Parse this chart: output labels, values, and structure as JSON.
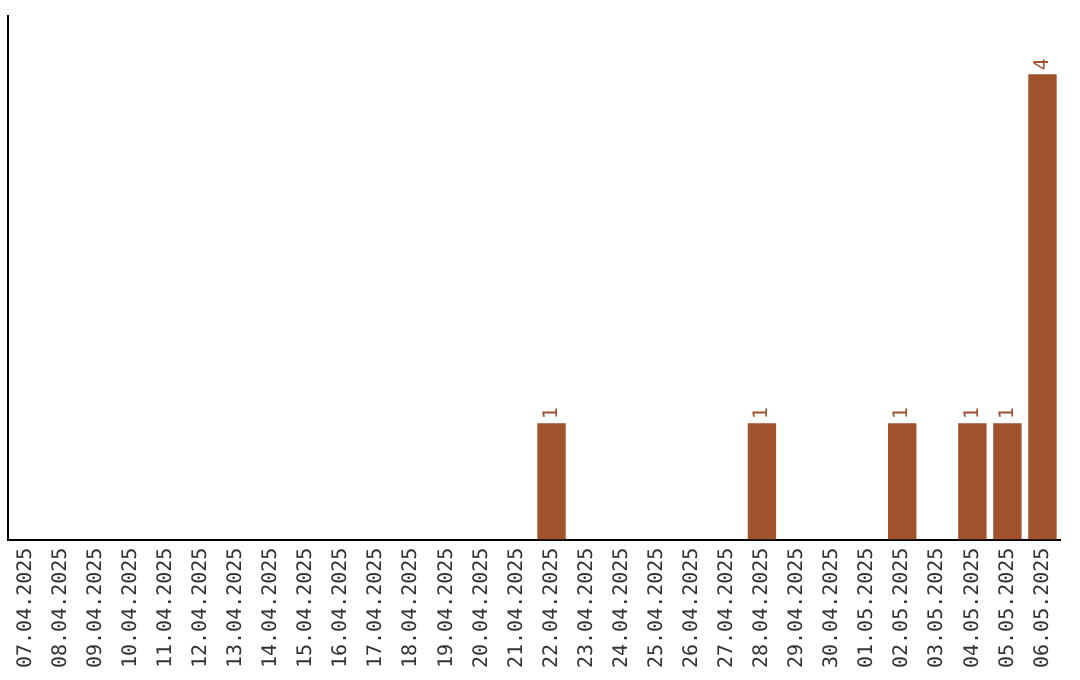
{
  "chart_data": {
    "type": "bar",
    "categories": [
      "07.04.2025",
      "08.04.2025",
      "09.04.2025",
      "10.04.2025",
      "11.04.2025",
      "12.04.2025",
      "13.04.2025",
      "14.04.2025",
      "15.04.2025",
      "16.04.2025",
      "17.04.2025",
      "18.04.2025",
      "19.04.2025",
      "20.04.2025",
      "21.04.2025",
      "22.04.2025",
      "23.04.2025",
      "24.04.2025",
      "25.04.2025",
      "26.04.2025",
      "27.04.2025",
      "28.04.2025",
      "29.04.2025",
      "30.04.2025",
      "01.05.2025",
      "02.05.2025",
      "03.05.2025",
      "04.05.2025",
      "05.05.2025",
      "06.05.2025"
    ],
    "values": [
      null,
      null,
      null,
      null,
      null,
      null,
      null,
      null,
      null,
      null,
      null,
      null,
      null,
      null,
      null,
      1,
      null,
      null,
      null,
      null,
      null,
      1,
      null,
      null,
      null,
      1,
      null,
      1,
      1,
      4
    ],
    "data_labels": true,
    "color": "#a0522d",
    "tick_labels": "x",
    "grid": false,
    "legend": false
  }
}
